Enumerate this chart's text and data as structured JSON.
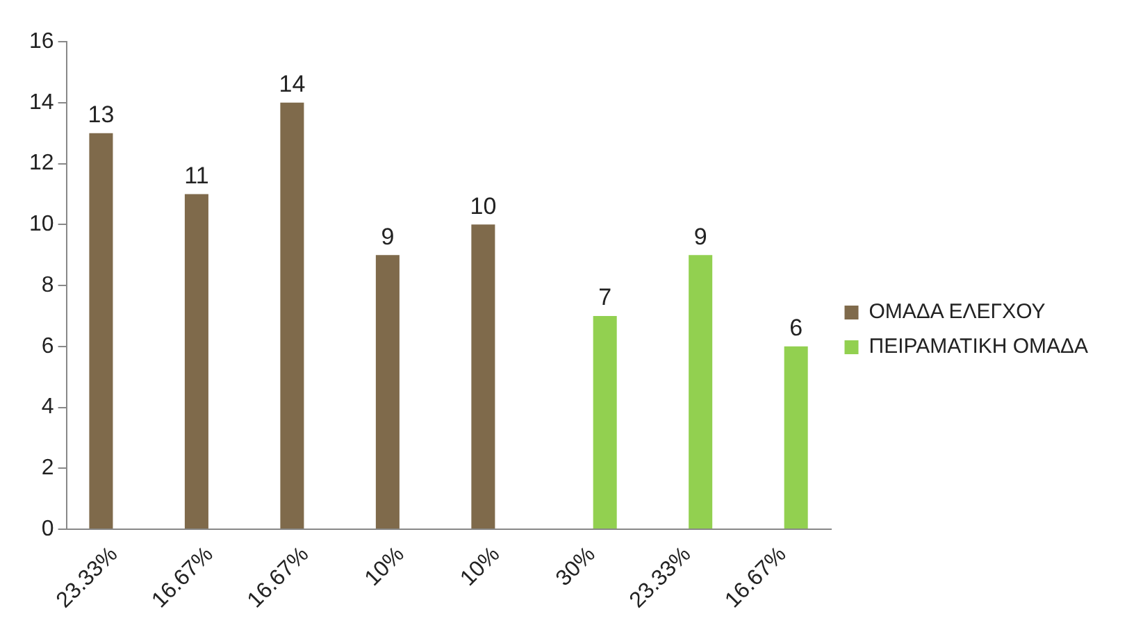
{
  "chart_data": {
    "type": "bar",
    "categories": [
      "23.33%",
      "16.67%",
      "16.67%",
      "10%",
      "10%",
      "30%",
      "23.33%",
      "16.67%"
    ],
    "series": [
      {
        "name": "ΟΜΑΔΑ ΕΛΕΓΧΟΥ",
        "color": "#7f6a4b",
        "values": [
          13,
          11,
          14,
          9,
          10,
          null,
          null,
          null
        ]
      },
      {
        "name": "ΠΕΙΡΑΜΑΤΙΚΗ ΟΜΑΔΑ",
        "color": "#92d050",
        "values": [
          null,
          null,
          null,
          null,
          null,
          7,
          9,
          6
        ]
      }
    ],
    "ylim": [
      0,
      16
    ],
    "yticks": [
      0,
      2,
      4,
      6,
      8,
      10,
      12,
      14,
      16
    ],
    "grid": false,
    "legend": "right",
    "data_labels": true
  }
}
